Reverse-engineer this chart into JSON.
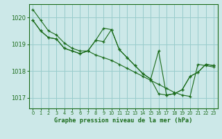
{
  "background_color": "#cce8e8",
  "grid_color": "#99cccc",
  "line_color": "#1a6b1a",
  "title": "Graphe pression niveau de la mer (hPa)",
  "xlim": [
    -0.5,
    23.5
  ],
  "ylim": [
    1016.6,
    1020.5
  ],
  "yticks": [
    1017,
    1018,
    1019,
    1020
  ],
  "xticks": [
    0,
    1,
    2,
    3,
    4,
    5,
    6,
    7,
    8,
    9,
    10,
    11,
    12,
    13,
    14,
    15,
    16,
    17,
    18,
    19,
    20,
    21,
    22,
    23
  ],
  "series": [
    [
      1020.3,
      1019.9,
      1019.5,
      1019.35,
      1019.05,
      1018.85,
      1018.75,
      1018.75,
      1018.6,
      1018.5,
      1018.4,
      1018.25,
      1018.1,
      1017.95,
      1017.8,
      1017.65,
      1017.5,
      1017.35,
      1017.2,
      1017.1,
      1017.05,
      1018.25,
      1018.2,
      1018.15
    ],
    [
      1019.9,
      1019.5,
      1019.25,
      1019.2,
      1018.85,
      1018.75,
      1018.65,
      1018.75,
      1019.15,
      1019.6,
      1019.55,
      1018.8,
      1018.5,
      1018.2,
      1017.9,
      1017.7,
      1017.15,
      1017.1,
      1017.15,
      1017.3,
      1017.8,
      1017.95,
      1018.25,
      1018.2
    ],
    [
      1019.9,
      1019.5,
      1019.25,
      1019.2,
      1018.85,
      1018.75,
      1018.65,
      1018.75,
      1019.15,
      1019.1,
      1019.55,
      1018.8,
      1018.5,
      1018.2,
      1017.9,
      1017.7,
      1018.75,
      1017.1,
      1017.15,
      1017.3,
      1017.8,
      1017.95,
      1018.25,
      1018.2
    ]
  ]
}
